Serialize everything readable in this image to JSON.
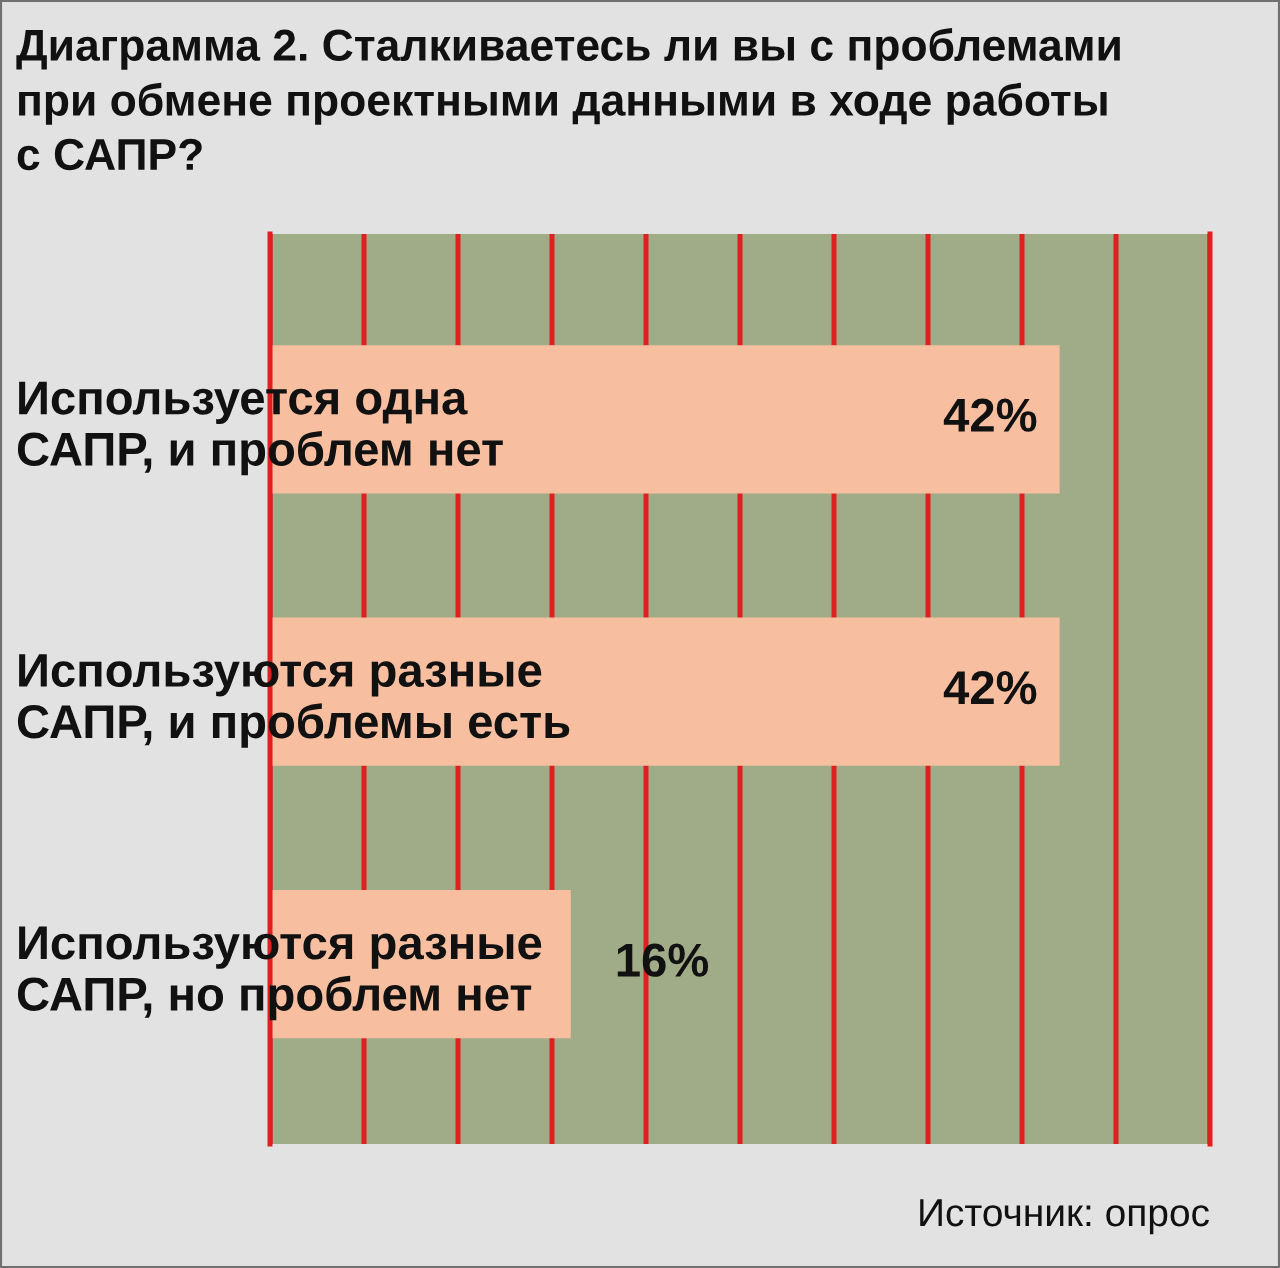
{
  "chart_data": {
    "type": "bar",
    "orientation": "horizontal",
    "title": "Диаграмма 2. Сталкиваетесь ли вы с проблемами\nпри обмене проектными данными в ходе работы\nс САПР?",
    "categories": [
      "Используется одна\nСАПР, и проблем нет",
      "Используются разные\nСАПР, и проблемы есть",
      "Используются разные\nСАПР, но проблем нет"
    ],
    "values": [
      42,
      42,
      16
    ],
    "color": "#f7bfa0",
    "value_labels": [
      "42%",
      "42%",
      "16%"
    ],
    "xlim": [
      0,
      50
    ],
    "xticks": [
      {
        "value": 0,
        "label": null
      },
      {
        "value": 5,
        "label": null
      },
      {
        "value": 10,
        "label": null
      },
      {
        "value": 15,
        "label": null
      },
      {
        "value": 20,
        "label": null
      },
      {
        "value": 25,
        "label": null
      },
      {
        "value": 30,
        "label": null
      },
      {
        "value": 35,
        "label": null
      },
      {
        "value": 40,
        "label": null
      },
      {
        "value": 45,
        "label": null
      },
      {
        "value": 50,
        "label": null
      }
    ],
    "grid": "x",
    "tick_labels": "y",
    "annotations": [
      "Источник: опрос"
    ]
  }
}
